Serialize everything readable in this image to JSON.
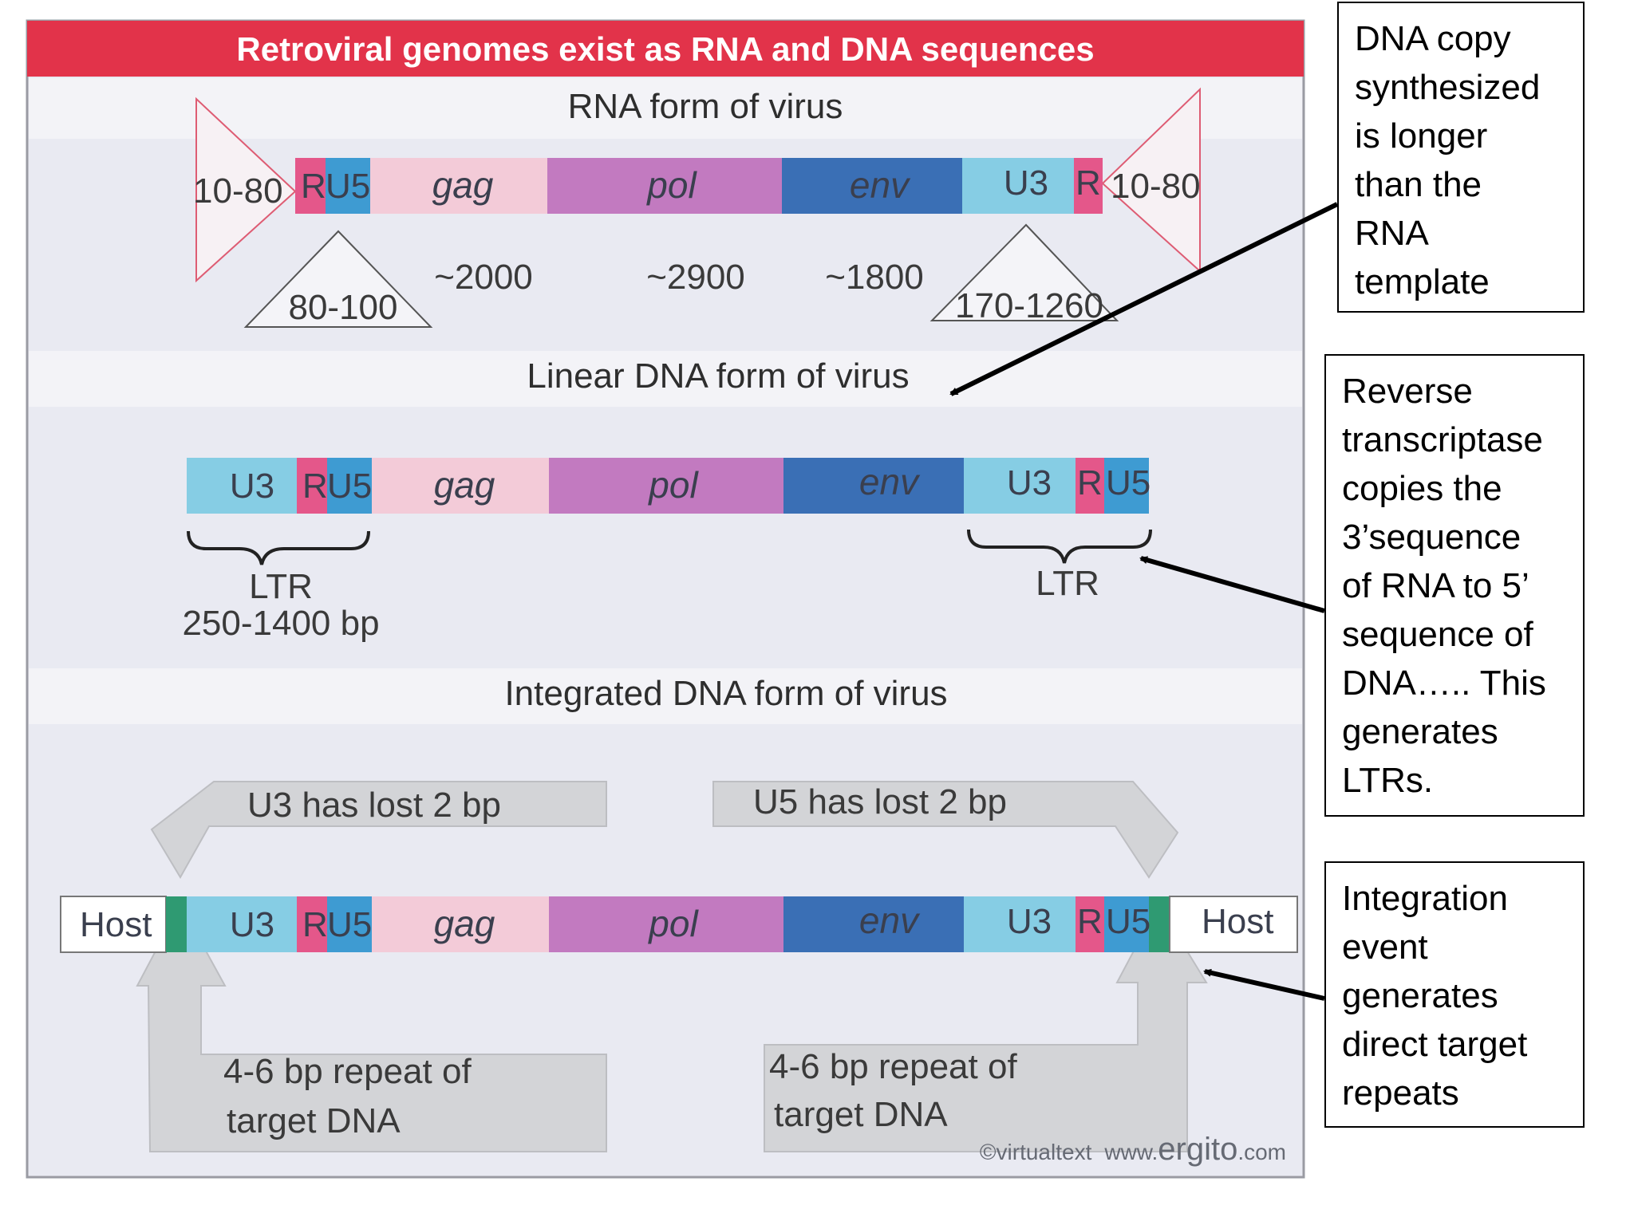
{
  "figure": {
    "title": "Retroviral genomes exist as RNA and DNA sequences",
    "sections": {
      "rna": "RNA form of virus",
      "linear": "Linear DNA form of virus",
      "integrated": "Integrated DNA form of virus"
    },
    "segments": {
      "R": "R",
      "U5": "U5",
      "U3": "U3",
      "gag": "gag",
      "pol": "pol",
      "env": "env",
      "host": "Host"
    },
    "rna_labels": {
      "cap_left": "10-80",
      "cap_right": "10-80",
      "u5_len": "80-100",
      "gag_len": "~2000",
      "pol_len": "~2900",
      "env_len": "~1800",
      "u3_len": "170-1260"
    },
    "ltr_labels": {
      "left": "LTR",
      "left_len": "250-1400 bp",
      "right": "LTR"
    },
    "integration_labels": {
      "u3_lost": "U3 has lost 2 bp",
      "u5_lost": "U5 has lost 2 bp",
      "repeat_left_1": "4-6 bp repeat of",
      "repeat_left_2": "target DNA",
      "repeat_right_1": "4-6 bp repeat of",
      "repeat_right_2": "target DNA"
    },
    "watermark": {
      "small": "©virtualtext",
      "site_prefix": "www.",
      "site_brand": "ergito",
      "site_suffix": ".com"
    },
    "colors": {
      "title_red": "#e2334a",
      "R": "#e4578a",
      "U5": "#3e9bd2",
      "U3": "#86cde4",
      "gag": "#f3cbd8",
      "pol": "#c27ac0",
      "env": "#3a6fb5",
      "target_repeat": "#2f9a72",
      "grey_arrow": "#d3d4d7"
    }
  },
  "callouts": {
    "top": "DNA copy\nsynthesized\nis longer\nthan the\nRNA\ntemplate",
    "middle": "Reverse\ntranscriptase\ncopies the\n3’sequence\nof RNA to 5’\nsequence of\nDNA….. This\ngenerates\nLTRs.",
    "bottom": "Integration\nevent\ngenerates\ndirect target\nrepeats"
  }
}
